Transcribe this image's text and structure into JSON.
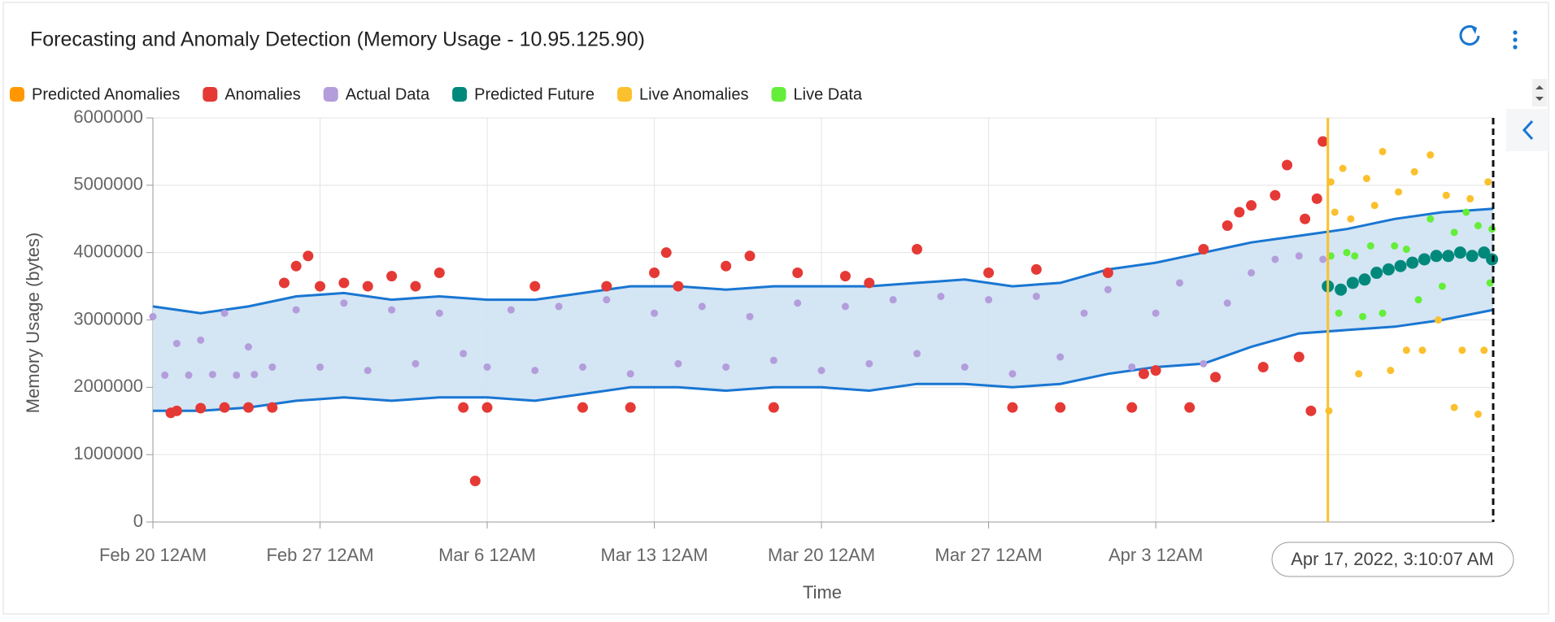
{
  "chart_data": {
    "type": "scatter",
    "title": "Forecasting and Anomaly Detection (Memory Usage - 10.95.125.90)",
    "x_label": "Time",
    "y_label": "Memory Usage (bytes)",
    "tooltip": "Apr 17, 2022, 3:10:07 AM",
    "xlim": [
      "2022-02-20T00:00",
      "2022-04-17T03:10"
    ],
    "xticks": [
      {
        "value": "2022-02-20T00:00",
        "label": "Feb 20 12AM"
      },
      {
        "value": "2022-02-27T00:00",
        "label": "Feb 27 12AM"
      },
      {
        "value": "2022-03-06T00:00",
        "label": "Mar 6 12AM"
      },
      {
        "value": "2022-03-13T00:00",
        "label": "Mar 13 12AM"
      },
      {
        "value": "2022-03-20T00:00",
        "label": "Mar 20 12AM"
      },
      {
        "value": "2022-03-27T00:00",
        "label": "Mar 27 12AM"
      },
      {
        "value": "2022-04-03T00:00",
        "label": "Apr 3 12AM"
      }
    ],
    "ylim": [
      0,
      6000000
    ],
    "yticks": [
      0,
      1000000,
      2000000,
      3000000,
      4000000,
      5000000,
      6000000
    ],
    "grid": true,
    "marker_x": "2022-04-10T05:00",
    "marker_color": "#fbc02d",
    "band": {
      "color": "#1976d2",
      "fill": "#cfe2f3",
      "x": [
        "2022-02-20T00:00",
        "2022-02-22T00:00",
        "2022-02-24T00:00",
        "2022-02-26T00:00",
        "2022-02-28T00:00",
        "2022-03-02T00:00",
        "2022-03-04T00:00",
        "2022-03-06T00:00",
        "2022-03-08T00:00",
        "2022-03-10T00:00",
        "2022-03-12T00:00",
        "2022-03-14T00:00",
        "2022-03-16T00:00",
        "2022-03-18T00:00",
        "2022-03-20T00:00",
        "2022-03-22T00:00",
        "2022-03-24T00:00",
        "2022-03-26T00:00",
        "2022-03-28T00:00",
        "2022-03-30T00:00",
        "2022-04-01T00:00",
        "2022-04-03T00:00",
        "2022-04-05T00:00",
        "2022-04-07T00:00",
        "2022-04-09T00:00",
        "2022-04-11T00:00",
        "2022-04-13T00:00",
        "2022-04-15T00:00",
        "2022-04-17T03:10"
      ],
      "upper": [
        3200000,
        3100000,
        3200000,
        3350000,
        3400000,
        3300000,
        3350000,
        3300000,
        3300000,
        3400000,
        3500000,
        3500000,
        3450000,
        3500000,
        3500000,
        3500000,
        3550000,
        3600000,
        3500000,
        3550000,
        3750000,
        3850000,
        4000000,
        4150000,
        4250000,
        4350000,
        4500000,
        4600000,
        4650000
      ],
      "lower": [
        1650000,
        1650000,
        1700000,
        1800000,
        1850000,
        1800000,
        1850000,
        1850000,
        1800000,
        1900000,
        2000000,
        2000000,
        1950000,
        2000000,
        2000000,
        1950000,
        2050000,
        2050000,
        2000000,
        2050000,
        2200000,
        2300000,
        2350000,
        2600000,
        2800000,
        2850000,
        2900000,
        3000000,
        3150000
      ]
    },
    "series": [
      {
        "name": "Predicted Anomalies",
        "color": "#ff9800",
        "x": [],
        "values": []
      },
      {
        "name": "Anomalies",
        "color": "#e53935",
        "x": [
          "2022-02-20T18:00",
          "2022-02-21T00:00",
          "2022-02-22T00:00",
          "2022-02-23T00:00",
          "2022-02-24T00:00",
          "2022-02-25T00:00",
          "2022-02-25T12:00",
          "2022-02-26T00:00",
          "2022-02-26T12:00",
          "2022-02-27T00:00",
          "2022-02-28T00:00",
          "2022-03-01T00:00",
          "2022-03-02T00:00",
          "2022-03-03T00:00",
          "2022-03-04T00:00",
          "2022-03-05T00:00",
          "2022-03-05T12:00",
          "2022-03-06T00:00",
          "2022-03-08T00:00",
          "2022-03-10T00:00",
          "2022-03-11T00:00",
          "2022-03-12T00:00",
          "2022-03-13T00:00",
          "2022-03-13T12:00",
          "2022-03-14T00:00",
          "2022-03-16T00:00",
          "2022-03-17T00:00",
          "2022-03-18T00:00",
          "2022-03-19T00:00",
          "2022-03-21T00:00",
          "2022-03-22T00:00",
          "2022-03-24T00:00",
          "2022-03-27T00:00",
          "2022-03-28T00:00",
          "2022-03-29T00:00",
          "2022-03-30T00:00",
          "2022-04-01T00:00",
          "2022-04-02T00:00",
          "2022-04-02T12:00",
          "2022-04-03T00:00",
          "2022-04-04T10:00",
          "2022-04-05T00:00",
          "2022-04-05T12:00",
          "2022-04-06T00:00",
          "2022-04-06T12:00",
          "2022-04-07T00:00",
          "2022-04-07T12:00",
          "2022-04-08T00:00",
          "2022-04-08T12:00",
          "2022-04-09T00:00",
          "2022-04-09T06:00",
          "2022-04-09T12:00",
          "2022-04-09T18:00",
          "2022-04-10T00:00"
        ],
        "values": [
          1620000,
          1650000,
          1690000,
          1700000,
          1700000,
          1700000,
          3550000,
          3800000,
          3950000,
          3500000,
          3550000,
          3500000,
          3650000,
          3500000,
          3700000,
          1700000,
          610000,
          1700000,
          3500000,
          1700000,
          3500000,
          1700000,
          3700000,
          4000000,
          3500000,
          3800000,
          3950000,
          1700000,
          3700000,
          3650000,
          3550000,
          4050000,
          3700000,
          1700000,
          3750000,
          1700000,
          3700000,
          1700000,
          2200000,
          2250000,
          1700000,
          4050000,
          2150000,
          4400000,
          4600000,
          4700000,
          2300000,
          4850000,
          5300000,
          2450000,
          4500000,
          1650000,
          4800000,
          5650000
        ]
      },
      {
        "name": "Actual Data",
        "color": "#b39ddb",
        "x": [
          "2022-02-20T12:00",
          "2022-02-21T12:00",
          "2022-02-22T12:00",
          "2022-02-23T12:00",
          "2022-02-24T06:00",
          "2022-02-20T00:00",
          "2022-02-21T00:00",
          "2022-02-22T00:00",
          "2022-02-23T00:00",
          "2022-02-24T00:00",
          "2022-02-25T00:00",
          "2022-02-26T00:00",
          "2022-02-27T00:00",
          "2022-02-28T00:00",
          "2022-03-01T00:00",
          "2022-03-02T00:00",
          "2022-03-03T00:00",
          "2022-03-04T00:00",
          "2022-03-05T00:00",
          "2022-03-06T00:00",
          "2022-03-07T00:00",
          "2022-03-08T00:00",
          "2022-03-09T00:00",
          "2022-03-10T00:00",
          "2022-03-11T00:00",
          "2022-03-12T00:00",
          "2022-03-13T00:00",
          "2022-03-14T00:00",
          "2022-03-15T00:00",
          "2022-03-16T00:00",
          "2022-03-17T00:00",
          "2022-03-18T00:00",
          "2022-03-19T00:00",
          "2022-03-20T00:00",
          "2022-03-21T00:00",
          "2022-03-22T00:00",
          "2022-03-23T00:00",
          "2022-03-24T00:00",
          "2022-03-25T00:00",
          "2022-03-26T00:00",
          "2022-03-27T00:00",
          "2022-03-28T00:00",
          "2022-03-29T00:00",
          "2022-03-30T00:00",
          "2022-03-31T00:00",
          "2022-04-01T00:00",
          "2022-04-02T00:00",
          "2022-04-03T00:00",
          "2022-04-04T00:00",
          "2022-04-05T00:00",
          "2022-04-06T00:00",
          "2022-04-07T00:00",
          "2022-04-08T00:00",
          "2022-04-09T00:00",
          "2022-04-10T00:00"
        ],
        "values": [
          2180000,
          2180000,
          2190000,
          2180000,
          2190000,
          3050000,
          2650000,
          2700000,
          3100000,
          2600000,
          2300000,
          3150000,
          2300000,
          3250000,
          2250000,
          3150000,
          2350000,
          3100000,
          2500000,
          2300000,
          3150000,
          2250000,
          3200000,
          2300000,
          3300000,
          2200000,
          3100000,
          2350000,
          3200000,
          2300000,
          3050000,
          2400000,
          3250000,
          2250000,
          3200000,
          2350000,
          3300000,
          2500000,
          3350000,
          2300000,
          3300000,
          2200000,
          3350000,
          2450000,
          3100000,
          3450000,
          2300000,
          3100000,
          3550000,
          2350000,
          3250000,
          3700000,
          3900000,
          3950000,
          3900000
        ]
      },
      {
        "name": "Predicted Future",
        "color": "#00897b",
        "x": [
          "2022-04-10T05:00",
          "2022-04-10T18:00",
          "2022-04-11T06:00",
          "2022-04-11T18:00",
          "2022-04-12T06:00",
          "2022-04-12T18:00",
          "2022-04-13T06:00",
          "2022-04-13T18:00",
          "2022-04-14T06:00",
          "2022-04-14T18:00",
          "2022-04-15T06:00",
          "2022-04-15T18:00",
          "2022-04-16T06:00",
          "2022-04-16T18:00",
          "2022-04-17T02:00"
        ],
        "values": [
          3500000,
          3450000,
          3550000,
          3600000,
          3700000,
          3750000,
          3800000,
          3850000,
          3900000,
          3950000,
          3950000,
          4000000,
          3950000,
          4000000,
          3900000
        ]
      },
      {
        "name": "Live Anomalies",
        "color": "#fbc02d",
        "x": [
          "2022-04-10T06:00",
          "2022-04-10T08:00",
          "2022-04-10T12:00",
          "2022-04-10T20:00",
          "2022-04-11T04:00",
          "2022-04-11T12:00",
          "2022-04-11T20:00",
          "2022-04-12T04:00",
          "2022-04-12T12:00",
          "2022-04-12T20:00",
          "2022-04-13T04:00",
          "2022-04-13T12:00",
          "2022-04-13T20:00",
          "2022-04-14T04:00",
          "2022-04-14T12:00",
          "2022-04-14T20:00",
          "2022-04-15T04:00",
          "2022-04-15T12:00",
          "2022-04-15T20:00",
          "2022-04-16T04:00",
          "2022-04-16T12:00",
          "2022-04-16T18:00",
          "2022-04-16T22:00"
        ],
        "values": [
          1650000,
          5050000,
          4600000,
          5250000,
          4500000,
          2200000,
          5100000,
          4700000,
          5500000,
          2250000,
          4900000,
          2550000,
          5200000,
          2550000,
          5450000,
          3000000,
          4850000,
          1700000,
          2550000,
          4800000,
          1600000,
          2550000,
          5050000
        ]
      },
      {
        "name": "Live Data",
        "color": "#64ee3a",
        "x": [
          "2022-04-10T08:00",
          "2022-04-10T16:00",
          "2022-04-11T00:00",
          "2022-04-11T08:00",
          "2022-04-11T16:00",
          "2022-04-12T00:00",
          "2022-04-12T12:00",
          "2022-04-13T00:00",
          "2022-04-13T12:00",
          "2022-04-14T00:00",
          "2022-04-14T12:00",
          "2022-04-15T00:00",
          "2022-04-15T12:00",
          "2022-04-16T00:00",
          "2022-04-16T12:00",
          "2022-04-17T00:00",
          "2022-04-17T02:00"
        ],
        "values": [
          3950000,
          3100000,
          4000000,
          3950000,
          3050000,
          4100000,
          3100000,
          4100000,
          4050000,
          3300000,
          4500000,
          3500000,
          4300000,
          4600000,
          4400000,
          3550000,
          4350000
        ]
      }
    ]
  }
}
